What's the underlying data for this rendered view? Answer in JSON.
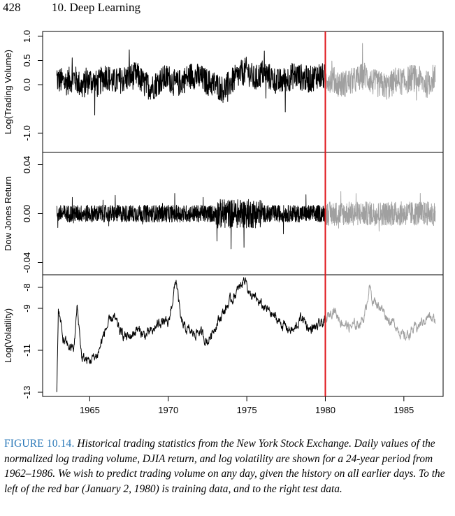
{
  "header": {
    "page_number": "428",
    "chapter": "10.  Deep Learning"
  },
  "figure": {
    "label": "FIGURE 10.14.",
    "caption": "Historical trading statistics from the New York Stock Exchange. Daily values of the normalized log trading volume, DJIA return, and log volatility are shown for a 24-year period from 1962–1986. We wish to predict trading volume on any day, given the history on all earlier days. To the left of the red bar (January 2, 1980) is training data, and to the right test data."
  },
  "colors": {
    "train": "#000000",
    "test": "#a0a0a0",
    "split": "#e0161b"
  },
  "chart_data": {
    "type": "line",
    "x_ticks": [
      "1965",
      "1970",
      "1975",
      "1980",
      "1985"
    ],
    "x_range": [
      1962.0,
      1987.5
    ],
    "split_at": 1980,
    "panels": [
      {
        "ylabel": "Log(Trading Volume)",
        "ylim": [
          -1.4,
          1.1
        ],
        "y_ticks": [
          "-1.0",
          "0.0",
          "0.5",
          "1.0"
        ],
        "y_tick_values": [
          -1.0,
          0.0,
          0.5,
          1.0
        ],
        "series": [
          {
            "role": "train",
            "x": [
              1962.9,
              1963.5,
              1964.0,
              1964.5,
              1965.0,
              1965.5,
              1966.0,
              1966.5,
              1967.0,
              1967.5,
              1968.0,
              1968.5,
              1969.0,
              1969.5,
              1970.0,
              1970.5,
              1971.0,
              1971.5,
              1972.0,
              1972.5,
              1973.0,
              1973.5,
              1974.0,
              1974.5,
              1975.0,
              1975.5,
              1976.0,
              1976.5,
              1977.0,
              1977.5,
              1978.0,
              1978.5,
              1979.0,
              1979.5,
              1980.0
            ],
            "y": [
              0.1,
              0.05,
              0.15,
              -0.05,
              0.1,
              0.0,
              0.2,
              0.05,
              0.1,
              0.15,
              0.2,
              0.0,
              -0.05,
              0.1,
              0.15,
              0.0,
              0.1,
              0.2,
              0.15,
              0.05,
              0.0,
              -0.1,
              0.05,
              0.2,
              0.3,
              0.1,
              0.25,
              0.15,
              0.05,
              0.1,
              0.2,
              0.15,
              0.1,
              0.2,
              0.15
            ]
          },
          {
            "role": "test",
            "x": [
              1980.0,
              1980.5,
              1981.0,
              1981.5,
              1982.0,
              1982.5,
              1983.0,
              1983.5,
              1984.0,
              1984.5,
              1985.0,
              1985.5,
              1986.0,
              1986.5,
              1987.0
            ],
            "y": [
              0.15,
              0.1,
              0.0,
              0.05,
              0.1,
              0.2,
              0.05,
              0.0,
              -0.05,
              0.1,
              0.05,
              0.15,
              0.1,
              0.0,
              0.2
            ]
          }
        ]
      },
      {
        "ylabel": "Dow Jones Return",
        "ylim": [
          -0.05,
          0.05
        ],
        "y_ticks": [
          "-0.04",
          "0.00",
          "0.04"
        ],
        "y_tick_values": [
          -0.04,
          0.0,
          0.04
        ],
        "series": [
          {
            "role": "train",
            "x": [
              1962.9,
              1965.0,
              1967.0,
              1969.0,
              1970.5,
              1972.0,
              1973.5,
              1974.5,
              1975.5,
              1977.0,
              1978.5,
              1980.0
            ],
            "y": [
              0.0,
              0.0,
              0.0,
              0.0,
              0.0,
              0.0,
              0.0,
              0.0,
              0.0,
              0.0,
              0.0,
              0.0
            ]
          },
          {
            "role": "test",
            "x": [
              1980.0,
              1982.0,
              1984.0,
              1986.0,
              1987.0
            ],
            "y": [
              0.0,
              0.0,
              0.0,
              0.0,
              0.0
            ]
          }
        ]
      },
      {
        "ylabel": "Log(Volatility)",
        "ylim": [
          -13.2,
          -7.4
        ],
        "y_ticks": [
          "-13",
          "-11",
          "-9",
          "-8"
        ],
        "y_tick_values": [
          -13,
          -11,
          -9,
          -8
        ],
        "series": [
          {
            "role": "train",
            "x": [
              1962.9,
              1963.0,
              1963.3,
              1963.6,
              1964.0,
              1964.2,
              1964.5,
              1965.0,
              1965.5,
              1966.0,
              1966.5,
              1967.0,
              1967.5,
              1968.0,
              1968.5,
              1969.0,
              1969.5,
              1970.0,
              1970.5,
              1970.8,
              1971.0,
              1971.5,
              1972.0,
              1972.5,
              1973.0,
              1973.5,
              1974.0,
              1974.5,
              1974.9,
              1975.2,
              1975.6,
              1976.0,
              1976.5,
              1977.0,
              1977.5,
              1978.0,
              1978.5,
              1979.0,
              1979.5,
              1980.0
            ],
            "y": [
              -13.0,
              -9.0,
              -10.5,
              -10.8,
              -10.9,
              -8.9,
              -11.4,
              -11.5,
              -11.2,
              -10.0,
              -9.4,
              -10.2,
              -10.4,
              -10.0,
              -10.3,
              -10.1,
              -9.6,
              -9.8,
              -7.6,
              -9.6,
              -9.9,
              -10.2,
              -10.1,
              -10.6,
              -9.8,
              -9.2,
              -8.6,
              -8.1,
              -7.5,
              -8.4,
              -8.6,
              -8.9,
              -9.2,
              -9.6,
              -9.9,
              -10.1,
              -9.4,
              -10.0,
              -9.9,
              -9.6
            ]
          },
          {
            "role": "test",
            "x": [
              1980.0,
              1980.5,
              1981.0,
              1981.5,
              1982.0,
              1982.5,
              1982.8,
              1983.0,
              1983.5,
              1984.0,
              1984.5,
              1985.0,
              1985.5,
              1986.0,
              1986.5,
              1987.0
            ],
            "y": [
              -9.6,
              -9.0,
              -9.6,
              -9.9,
              -9.8,
              -9.4,
              -7.9,
              -8.6,
              -8.9,
              -9.5,
              -9.8,
              -10.4,
              -10.1,
              -9.8,
              -9.4,
              -9.6
            ]
          }
        ]
      }
    ]
  }
}
